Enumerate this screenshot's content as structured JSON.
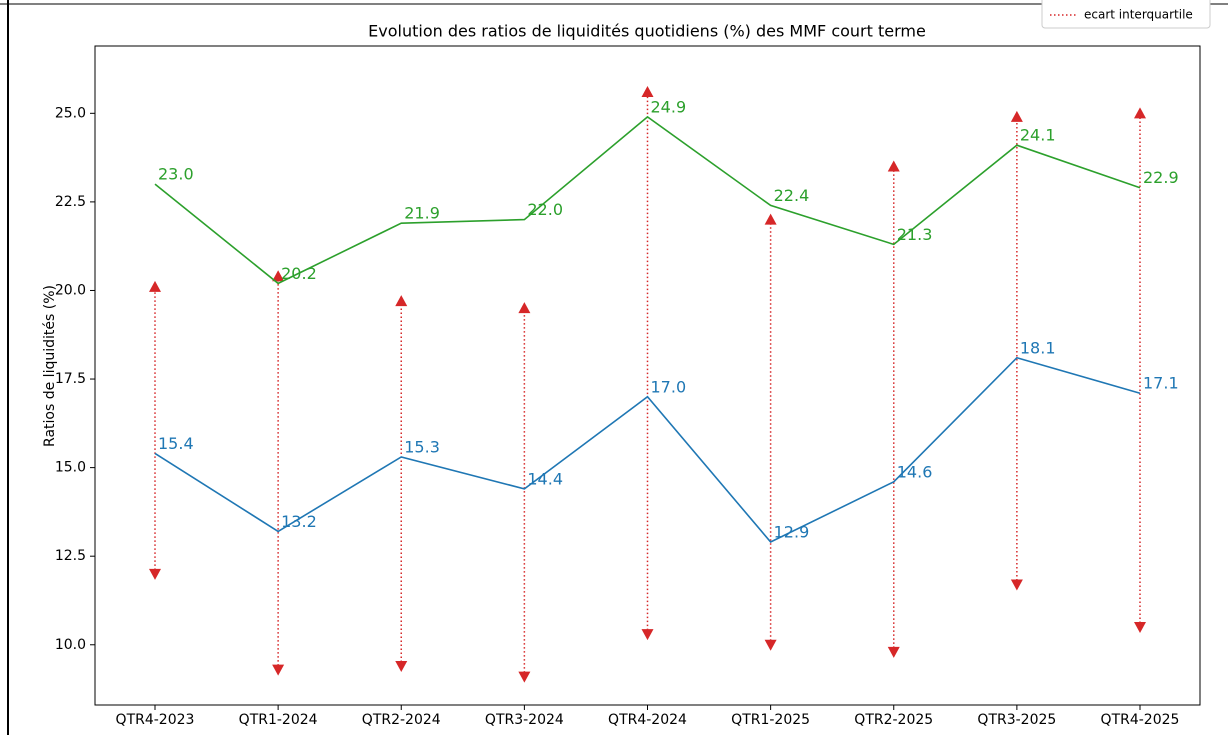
{
  "chart_data": {
    "type": "line",
    "title": "Evolution des ratios de liquidités quotidiens (%) des MMF court terme",
    "y_label": "Ratios de liquidités (%)",
    "categories": [
      "QTR4-2023",
      "QTR1-2024",
      "QTR2-2024",
      "QTR3-2024",
      "QTR4-2024",
      "QTR1-2025",
      "QTR2-2025",
      "QTR3-2025",
      "QTR4-2025"
    ],
    "series": [
      {
        "color": "#2ca02c",
        "values": [
          23.0,
          20.2,
          21.9,
          22.0,
          24.9,
          22.4,
          21.3,
          24.1,
          22.9
        ],
        "value_labels": [
          "23.0",
          "20.2",
          "21.9",
          "22.0",
          "24.9",
          "22.4",
          "21.3",
          "24.1",
          "22.9"
        ]
      },
      {
        "color": "#1f77b4",
        "values": [
          15.4,
          13.2,
          15.3,
          14.4,
          17.0,
          12.9,
          14.6,
          18.1,
          17.1
        ],
        "value_labels": [
          "15.4",
          "13.2",
          "15.3",
          "14.4",
          "17.0",
          "12.9",
          "14.6",
          "18.1",
          "17.1"
        ]
      }
    ],
    "interquartile": {
      "name": "ecart interquartile",
      "color": "#d62728",
      "low": [
        12.0,
        9.3,
        9.4,
        9.1,
        10.3,
        10.0,
        9.8,
        11.7,
        10.5
      ],
      "high": [
        20.1,
        20.4,
        19.7,
        19.5,
        25.6,
        22.0,
        23.5,
        24.9,
        25.0
      ]
    },
    "ylim": [
      8.3,
      26.9
    ],
    "yticks": [
      {
        "value": 10,
        "label": "10.0"
      },
      12.5,
      {
        "value": 15,
        "label": "15.0"
      },
      17.5,
      {
        "value": 20,
        "label": "20.0"
      },
      22.5,
      {
        "value": 25,
        "label": "25.0"
      }
    ],
    "grid": false,
    "legend_position": "upper right"
  }
}
